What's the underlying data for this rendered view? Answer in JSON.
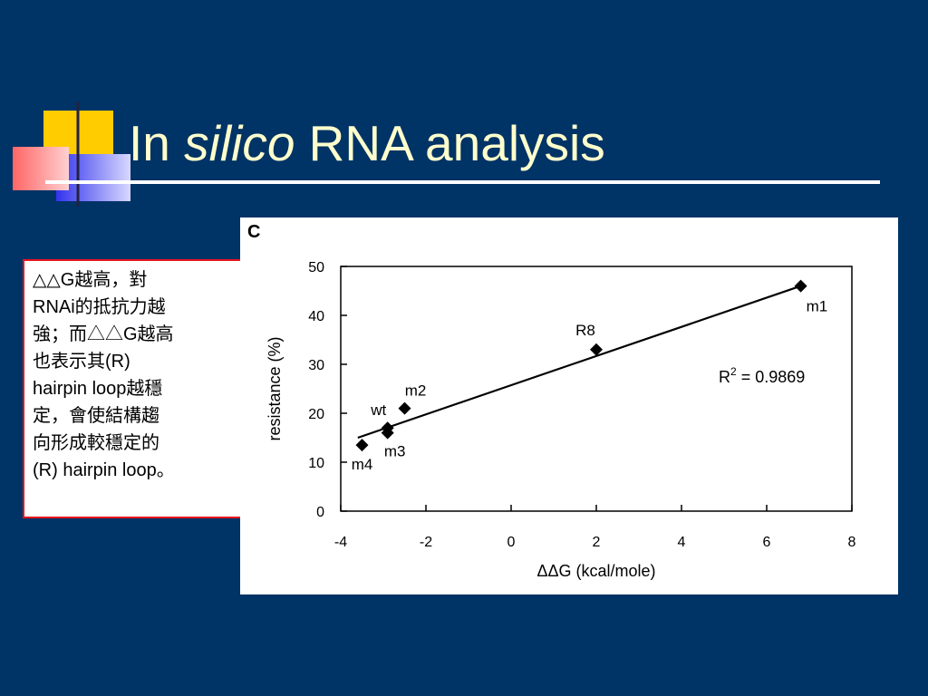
{
  "slide": {
    "title_prefix": "In ",
    "title_italic": "silico",
    "title_suffix": " RNA analysis"
  },
  "note": {
    "lines": [
      "△△G越高，對",
      "RNAi的抵抗力越",
      "強；而△△G越高",
      "也表示其(R)",
      "hairpin loop越穩",
      "定，會使結構趨",
      "向形成較穩定的",
      "(R) hairpin loop。"
    ]
  },
  "colors": {
    "background": "#003366",
    "title": "#ffffcc",
    "note_border": "#e8141e"
  },
  "chart_data": {
    "type": "scatter",
    "panel_label": "C",
    "xlabel": "ΔΔG (kcal/mole)",
    "ylabel": "resistance (%)",
    "xlim": [
      -4,
      8
    ],
    "ylim": [
      0,
      50
    ],
    "xticks": [
      -4,
      -2,
      0,
      2,
      4,
      6,
      8
    ],
    "yticks": [
      0,
      10,
      20,
      30,
      40,
      50
    ],
    "grid": false,
    "points": [
      {
        "label": "m1",
        "x": 6.8,
        "y": 46
      },
      {
        "label": "R8",
        "x": 2.0,
        "y": 33
      },
      {
        "label": "m2",
        "x": -2.5,
        "y": 21
      },
      {
        "label": "wt",
        "x": -2.9,
        "y": 17
      },
      {
        "label": "m3",
        "x": -2.9,
        "y": 16
      },
      {
        "label": "m4",
        "x": -3.5,
        "y": 13.5
      }
    ],
    "fit_line": {
      "x": [
        -3.6,
        6.8
      ],
      "y": [
        15,
        46
      ]
    },
    "annotation": {
      "base": "R",
      "superscript": "2",
      "rest": " = 0.9869"
    }
  }
}
